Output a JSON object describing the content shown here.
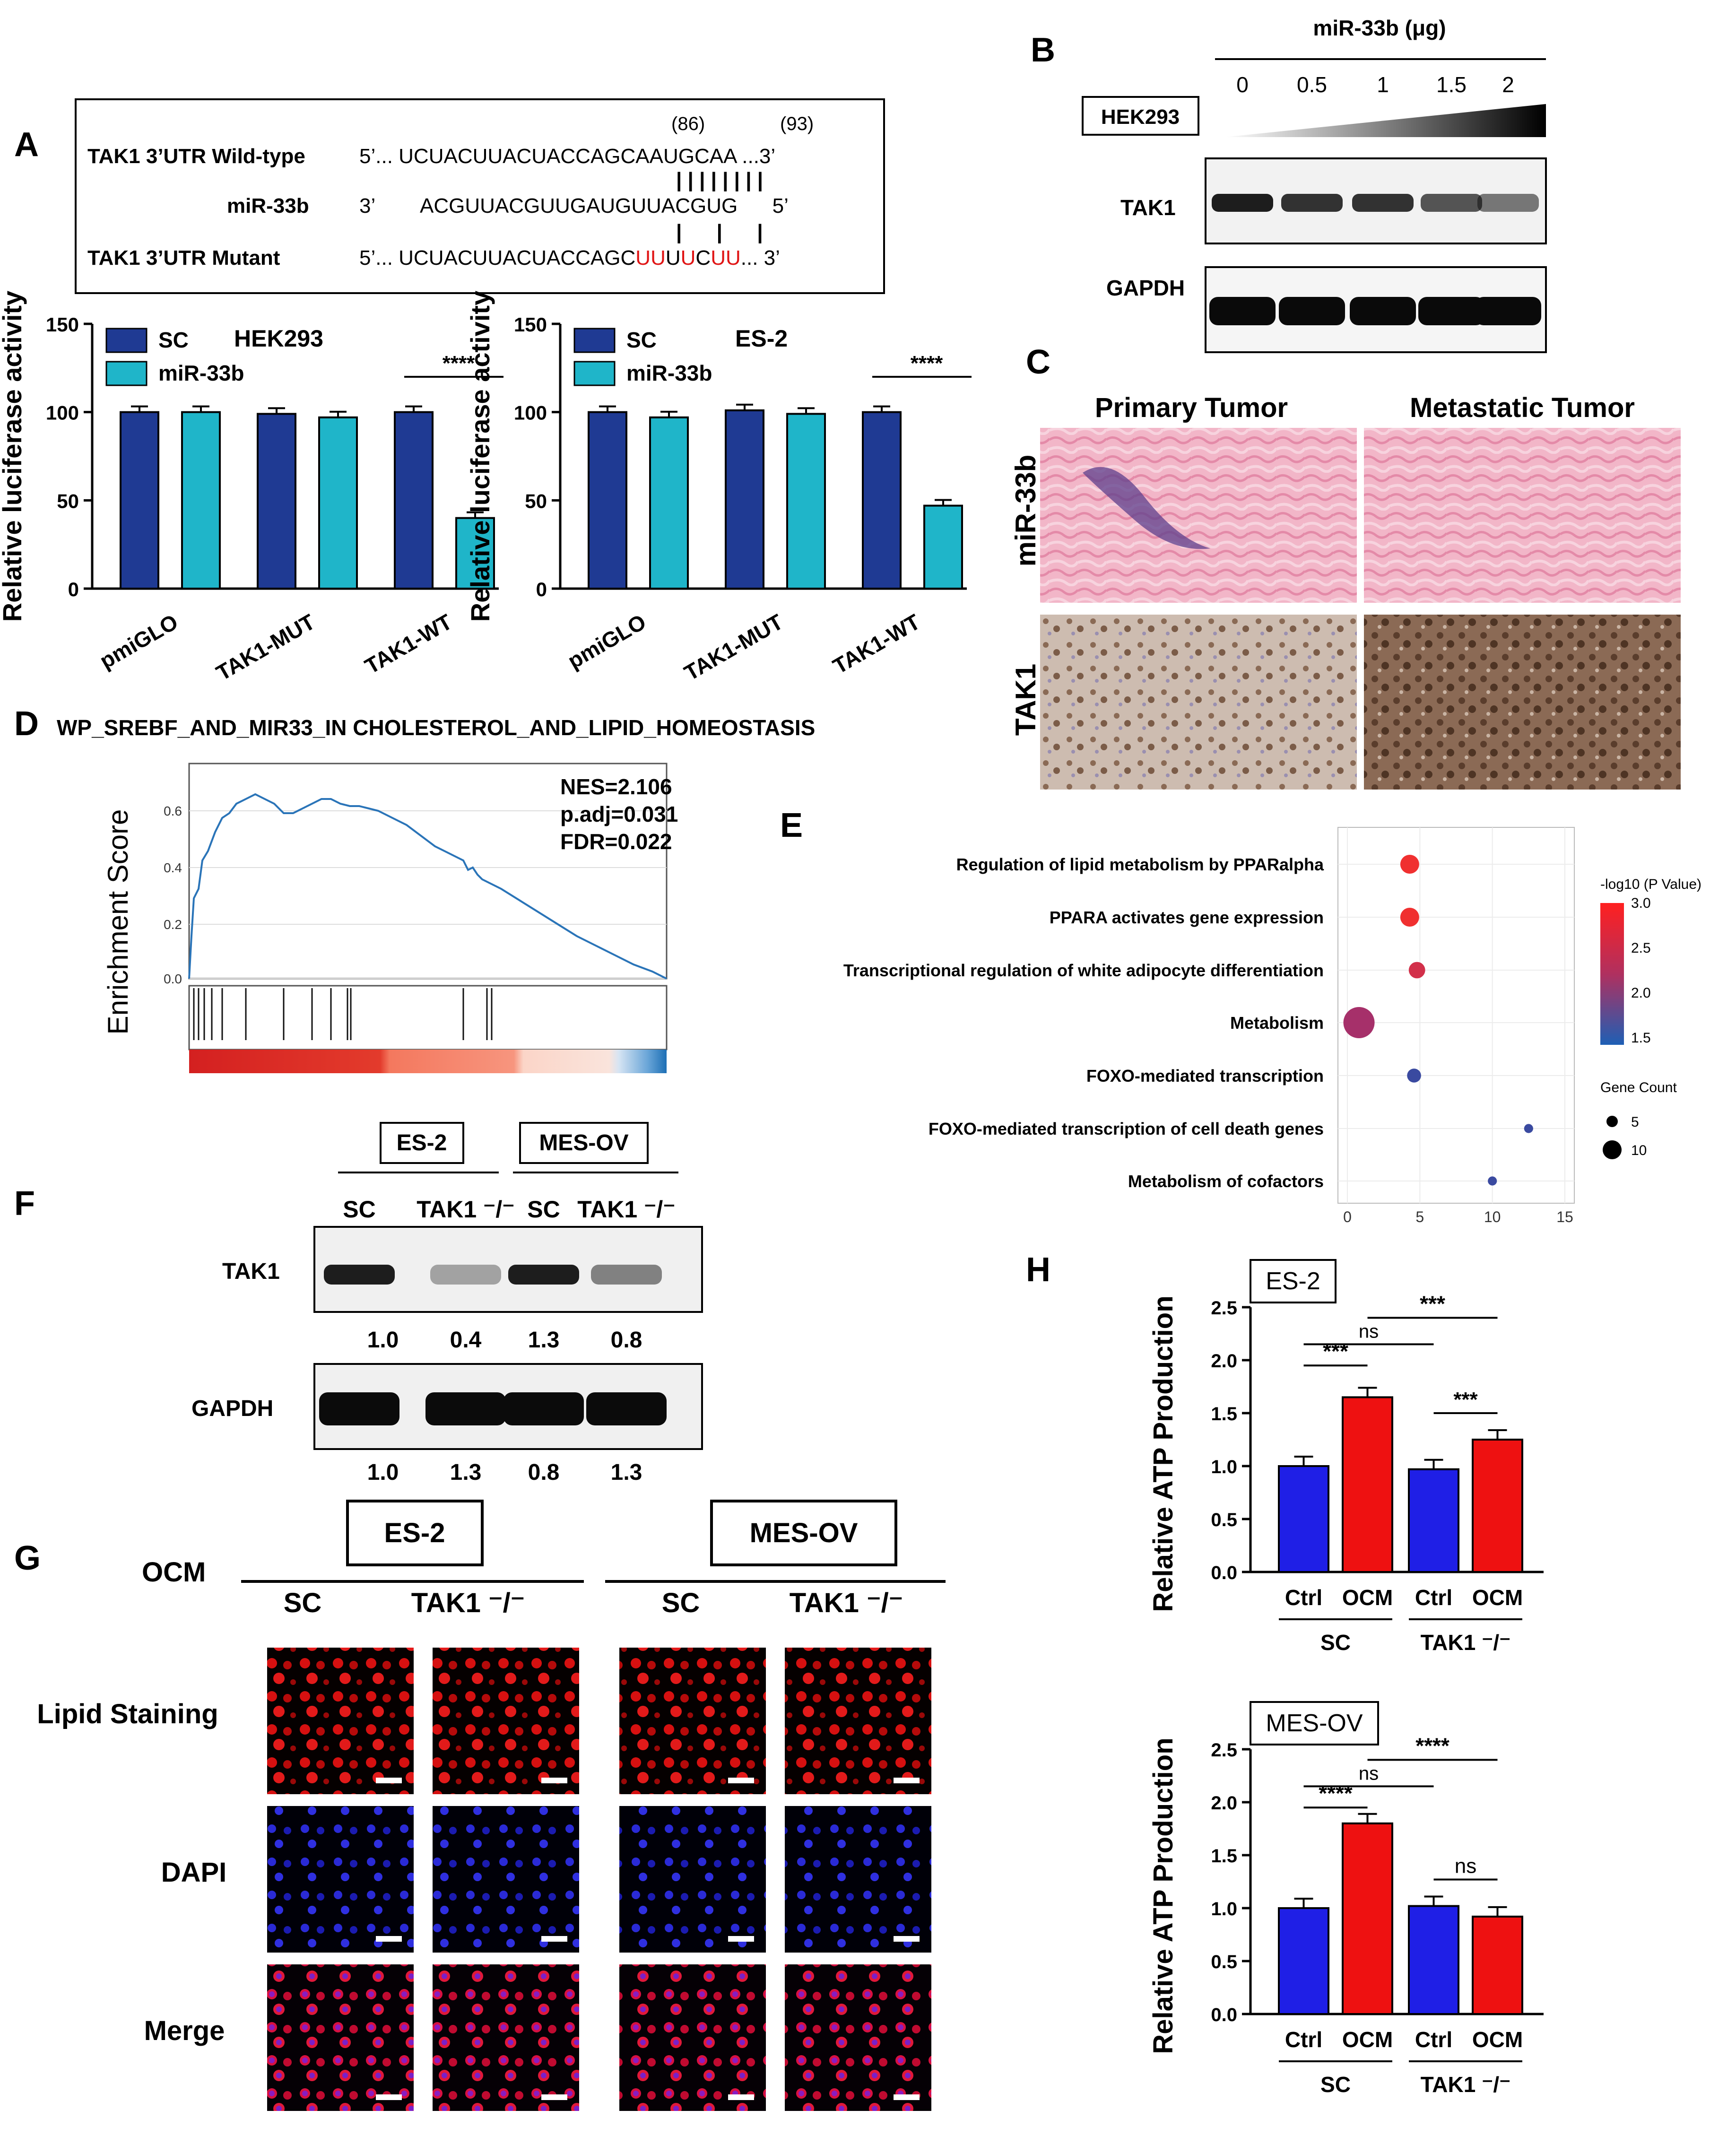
{
  "panels": {
    "A": "A",
    "B": "B",
    "C": "C",
    "D": "D",
    "E": "E",
    "F": "F",
    "G": "G",
    "H": "H"
  },
  "colors": {
    "sc_dark": "#1f3a93",
    "mir_cyan": "#1fb5c9",
    "ctrl_blue": "#1f1fe6",
    "ocm_red": "#ee1111",
    "mut_red": "#e01414"
  },
  "A": {
    "wt_label": "TAK1 3’UTR Wild-type",
    "wt_seq": "5’... UCUACUUACUACCAGCAAUGCAA ...3’",
    "pos1": "(86)",
    "pos2": "(93)",
    "mir_label": "miR-33b",
    "mir_seq": "3’        ACGUUACGUUGAUGUUACGUG      5’",
    "mut_label": "TAK1 3’UTR Mutant",
    "mut_seq_prefix": "5’... UCUACUUACUACCAGC",
    "mut_u1": "UU",
    "mut_mid1": "U",
    "mut_u2": "U",
    "mut_mid2": "C",
    "mut_u3": "UU",
    "mut_suffix": "... 3’",
    "pairs_top": "| | | | | | | |",
    "pairs_bottom": "|      |      |"
  },
  "B": {
    "title": "miR-33b (μg)",
    "doses": [
      "0",
      "0.5",
      "1",
      "1.5",
      "2"
    ],
    "cell": "HEK293",
    "row1": "TAK1",
    "row2": "GAPDH"
  },
  "C": {
    "col1": "Primary Tumor",
    "col2": "Metastatic Tumor",
    "row1": "miR-33b",
    "row2": "TAK1"
  },
  "D": {
    "title": "WP_SREBF_AND_MIR33_IN CHOLESTEROL_AND_LIPID_HOMEOSTASIS",
    "ylabel": "Enrichment Score",
    "yticks": [
      "0.6",
      "0.4",
      "0.2",
      "0.0"
    ],
    "nes": "NES=2.106",
    "padj": "p.adj=0.031",
    "fdr": "FDR=0.022"
  },
  "F": {
    "group1": "ES-2",
    "group2": "MES-OV",
    "lanes": [
      "SC",
      "TAK1 ⁻/⁻",
      "SC",
      "TAK1 ⁻/⁻"
    ],
    "row1": "TAK1",
    "row2": "GAPDH",
    "tak1_vals": [
      "1.0",
      "0.4",
      "1.3",
      "0.8"
    ],
    "gapdh_vals": [
      "1.0",
      "1.3",
      "0.8",
      "1.3"
    ]
  },
  "G": {
    "group1": "ES-2",
    "group2": "MES-OV",
    "ocm": "OCM",
    "cols": [
      "SC",
      "TAK1 ⁻/⁻",
      "SC",
      "TAK1 ⁻/⁻"
    ],
    "rows": [
      "Lipid Staining",
      "DAPI",
      "Merge"
    ]
  },
  "chart_data": [
    {
      "type": "bar",
      "title": "HEK293",
      "ylabel": "Relative luciferase activity",
      "xlabel": "",
      "categories": [
        "pmiGLO",
        "TAK1-MUT",
        "TAK1-WT"
      ],
      "ylim": [
        0,
        150
      ],
      "yticks": [
        "0",
        "50",
        "100",
        "150"
      ],
      "series": [
        {
          "name": "SC",
          "values": [
            100,
            99,
            100
          ]
        },
        {
          "name": "miR-33b",
          "values": [
            100,
            97,
            40
          ]
        }
      ],
      "significance": "****",
      "legend": "top-left"
    },
    {
      "type": "bar",
      "title": "ES-2",
      "ylabel": "Relative luciferase activity",
      "xlabel": "",
      "categories": [
        "pmiGLO",
        "TAK1-MUT",
        "TAK1-WT"
      ],
      "ylim": [
        0,
        150
      ],
      "yticks": [
        "0",
        "50",
        "100",
        "150"
      ],
      "series": [
        {
          "name": "SC",
          "values": [
            100,
            101,
            100
          ]
        },
        {
          "name": "miR-33b",
          "values": [
            97,
            99,
            47
          ]
        }
      ],
      "significance": "****",
      "legend": "top-left"
    },
    {
      "type": "scatter",
      "title": "",
      "xlabel": "",
      "ylabel": "",
      "categories": [
        "Regulation of lipid metabolism by PPARalpha",
        "PPARA activates gene expression",
        "Transcriptional regulation of white adipocyte differentiation",
        "Metabolism",
        "FOXO-mediated transcription",
        "FOXO-mediated transcription of cell death genes",
        "Metabolism of cofactors"
      ],
      "x": [
        4.3,
        4.3,
        4.8,
        0.8,
        4.6,
        12.5,
        10.0
      ],
      "neglog10p": [
        3.0,
        3.0,
        2.5,
        2.3,
        1.8,
        1.6,
        1.6
      ],
      "gene_count": [
        5,
        5,
        4,
        10,
        3,
        1,
        1
      ],
      "xlim": [
        0,
        15
      ],
      "xticks": [
        "0",
        "5",
        "10",
        "15"
      ],
      "legend_color_title": "-log10 (P Value)",
      "legend_color_ticks": [
        "3.0",
        "2.5",
        "2.0",
        "1.5"
      ],
      "legend_size_title": "Gene Count",
      "legend_size_ticks": [
        "5",
        "10"
      ]
    },
    {
      "type": "bar",
      "title": "ES-2",
      "ylabel": "Relative ATP Production",
      "xlabel": "",
      "categories": [
        "Ctrl",
        "OCM",
        "Ctrl",
        "OCM"
      ],
      "groups": [
        "SC",
        "TAK1 ⁻/⁻"
      ],
      "values": [
        1.0,
        1.65,
        0.97,
        1.25
      ],
      "ylim": [
        0,
        2.5
      ],
      "yticks": [
        "0.0",
        "0.5",
        "1.0",
        "1.5",
        "2.0",
        "2.5"
      ],
      "sig": [
        "***",
        "ns",
        "***",
        "***"
      ]
    },
    {
      "type": "bar",
      "title": "MES-OV",
      "ylabel": "Relative ATP Production",
      "xlabel": "",
      "categories": [
        "Ctrl",
        "OCM",
        "Ctrl",
        "OCM"
      ],
      "groups": [
        "SC",
        "TAK1 ⁻/⁻"
      ],
      "values": [
        1.0,
        1.8,
        1.02,
        0.92
      ],
      "ylim": [
        0,
        2.5
      ],
      "yticks": [
        "0.0",
        "0.5",
        "1.0",
        "1.5",
        "2.0",
        "2.5"
      ],
      "sig": [
        "****",
        "ns",
        "****",
        "ns"
      ]
    }
  ]
}
